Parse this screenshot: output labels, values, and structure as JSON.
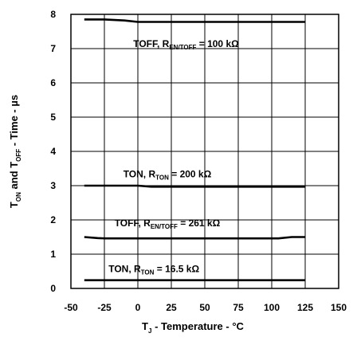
{
  "chart_data": {
    "type": "line",
    "title": "",
    "xlabel": {
      "main": "T",
      "sub": "J",
      "rest": " - Temperature - °C"
    },
    "ylabel": {
      "parts": [
        {
          "text": "T",
          "sub": false
        },
        {
          "text": "ON",
          "sub": true
        },
        {
          "text": " and T",
          "sub": false
        },
        {
          "text": "OFF",
          "sub": true
        },
        {
          "text": " - Time - µs",
          "sub": false
        }
      ]
    },
    "xlim": [
      -50,
      150
    ],
    "ylim": [
      0,
      8
    ],
    "x_ticks": [
      -50,
      -25,
      0,
      25,
      50,
      75,
      100,
      125,
      150
    ],
    "y_ticks": [
      0,
      1,
      2,
      3,
      4,
      5,
      6,
      7,
      8
    ],
    "grid": true,
    "series": [
      {
        "x": [
          -40,
          -25,
          -10,
          0,
          25,
          50,
          75,
          100,
          125
        ],
        "y": [
          7.85,
          7.85,
          7.82,
          7.78,
          7.78,
          7.78,
          7.78,
          7.78,
          7.78
        ]
      },
      {
        "x": [
          -40,
          -25,
          0,
          10,
          25,
          50,
          75,
          100,
          125
        ],
        "y": [
          3.0,
          3.0,
          3.0,
          2.97,
          2.97,
          2.97,
          2.97,
          2.97,
          2.97
        ]
      },
      {
        "x": [
          -40,
          -30,
          -25,
          0,
          25,
          50,
          75,
          100,
          105,
          115,
          125
        ],
        "y": [
          1.5,
          1.47,
          1.46,
          1.46,
          1.46,
          1.46,
          1.46,
          1.46,
          1.46,
          1.5,
          1.5
        ]
      },
      {
        "x": [
          -40,
          -25,
          0,
          25,
          50,
          75,
          100,
          125
        ],
        "y": [
          0.24,
          0.24,
          0.24,
          0.24,
          0.24,
          0.24,
          0.24,
          0.24
        ]
      }
    ],
    "annotations": [
      {
        "x": 36,
        "y": 7.05,
        "main": "TOFF, R",
        "sub": "EN/TOFF",
        "rest": " = 100 kΩ"
      },
      {
        "x": 22,
        "y": 3.25,
        "main": "TON, R",
        "sub": "TON",
        "rest": " = 200 kΩ"
      },
      {
        "x": 22,
        "y": 1.81,
        "main": "TOFF, R",
        "sub": "EN/TOFF",
        "rest": " = 261 kΩ"
      },
      {
        "x": 12,
        "y": 0.48,
        "main": "TON, R",
        "sub": "TON",
        "rest": " = 16.5 kΩ"
      }
    ]
  }
}
